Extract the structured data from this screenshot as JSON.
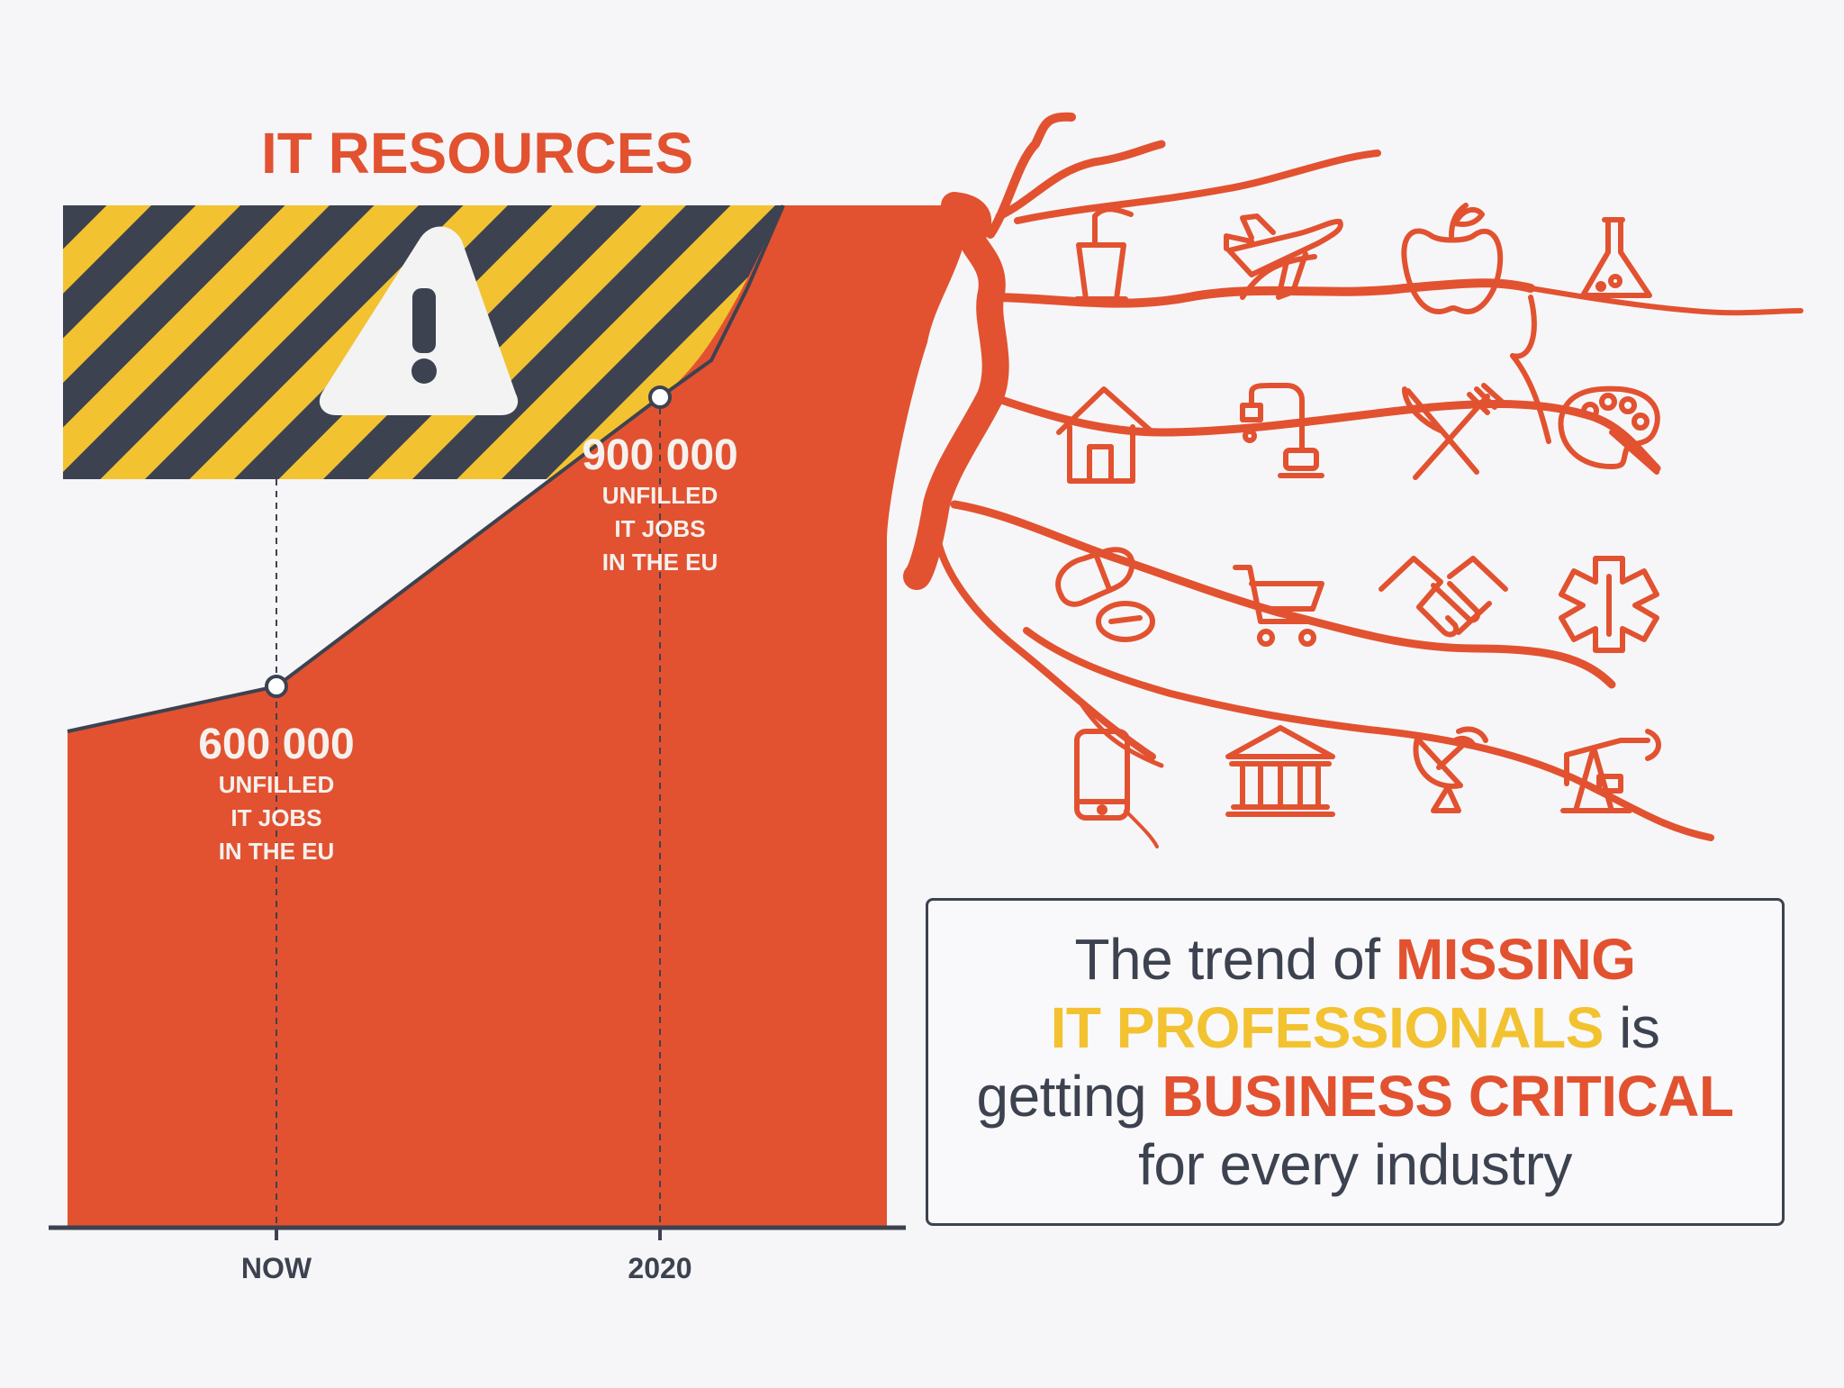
{
  "title": "IT RESOURCES",
  "colors": {
    "accent_red": "#e25230",
    "accent_yellow": "#f2c231",
    "dark_navy": "#3d4250",
    "background": "#f6f6f8",
    "white": "#ffffff"
  },
  "chart_data": {
    "type": "area",
    "title": "IT RESOURCES",
    "categories": [
      "NOW",
      "2020"
    ],
    "series": [
      {
        "values": [
          600000,
          900000
        ]
      }
    ],
    "annotations": [
      {
        "x": "NOW",
        "value_label": "600 000",
        "lines": [
          "UNFILLED",
          "IT JOBS",
          "IN THE EU"
        ]
      },
      {
        "x": "2020",
        "value_label": "900 000",
        "lines": [
          "UNFILLED",
          "IT JOBS",
          "IN THE EU"
        ]
      }
    ],
    "xlabel": "",
    "ylabel": "",
    "grid": false,
    "legend": "none"
  },
  "warning_zone": {
    "icon": "warning-triangle-icon",
    "pattern": "yellow-black-hazard-stripes"
  },
  "industry_icons": [
    "factory-icon",
    "airplane-icon",
    "apple-icon",
    "flask-icon",
    "house-icon",
    "faucet-icon",
    "fork-knife-icon",
    "palette-icon",
    "pills-icon",
    "shopping-cart-icon",
    "handshake-icon",
    "medical-star-icon",
    "smartphone-icon",
    "bank-icon",
    "satellite-dish-icon",
    "oil-pump-icon"
  ],
  "message": {
    "part1": "The trend of ",
    "part2": "MISSING",
    "part3": "IT PROFESSIONALS",
    "part4": " is",
    "part5": "getting ",
    "part6": "BUSINESS CRITICAL",
    "part7": "for every industry"
  }
}
